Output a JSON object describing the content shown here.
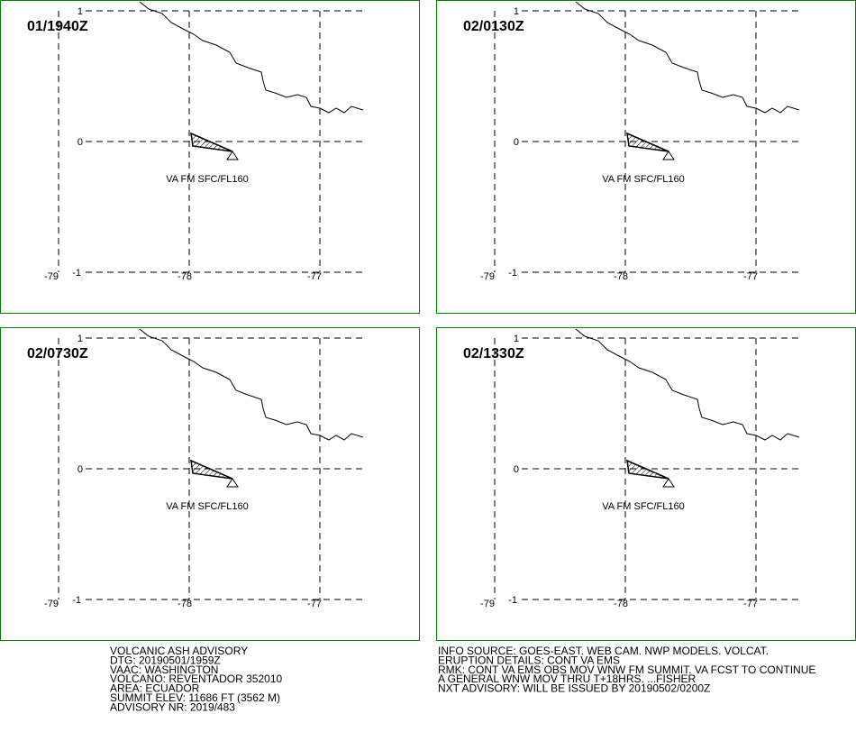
{
  "panels": [
    {
      "time": "01/1940Z",
      "annotation": "VA FM SFC/FL160"
    },
    {
      "time": "02/0130Z",
      "annotation": "VA FM SFC/FL160"
    },
    {
      "time": "02/0730Z",
      "annotation": "VA FM SFC/FL160"
    },
    {
      "time": "02/1330Z",
      "annotation": "VA FM SFC/FL160"
    }
  ],
  "grid": {
    "lon_labels": [
      "-79",
      "-78",
      "-77"
    ],
    "lat_labels": [
      "1",
      "0",
      "-1"
    ]
  },
  "advisory_left": [
    "VOLCANIC ASH ADVISORY",
    "DTG: 20190501/1959Z",
    "VAAC: WASHINGTON",
    "VOLCANO: REVENTADOR 352010",
    "AREA: ECUADOR",
    "SUMMIT ELEV: 11686 FT (3562 M)",
    "ADVISORY NR: 2019/483"
  ],
  "advisory_right": [
    "INFO SOURCE: GOES-EAST. WEB CAM. NWP MODELS. VOLCAT.",
    "ERUPTION DETAILS: CONT VA EMS",
    "RMK: CONT VA EMS OBS MOV WNW FM SUMMIT. VA FCST TO CONTINUE",
    "A GENERAL WNW MOV THRU T+18HRS. ...FISHER",
    "NXT ADVISORY: WILL BE ISSUED BY 20190502/0200Z"
  ]
}
